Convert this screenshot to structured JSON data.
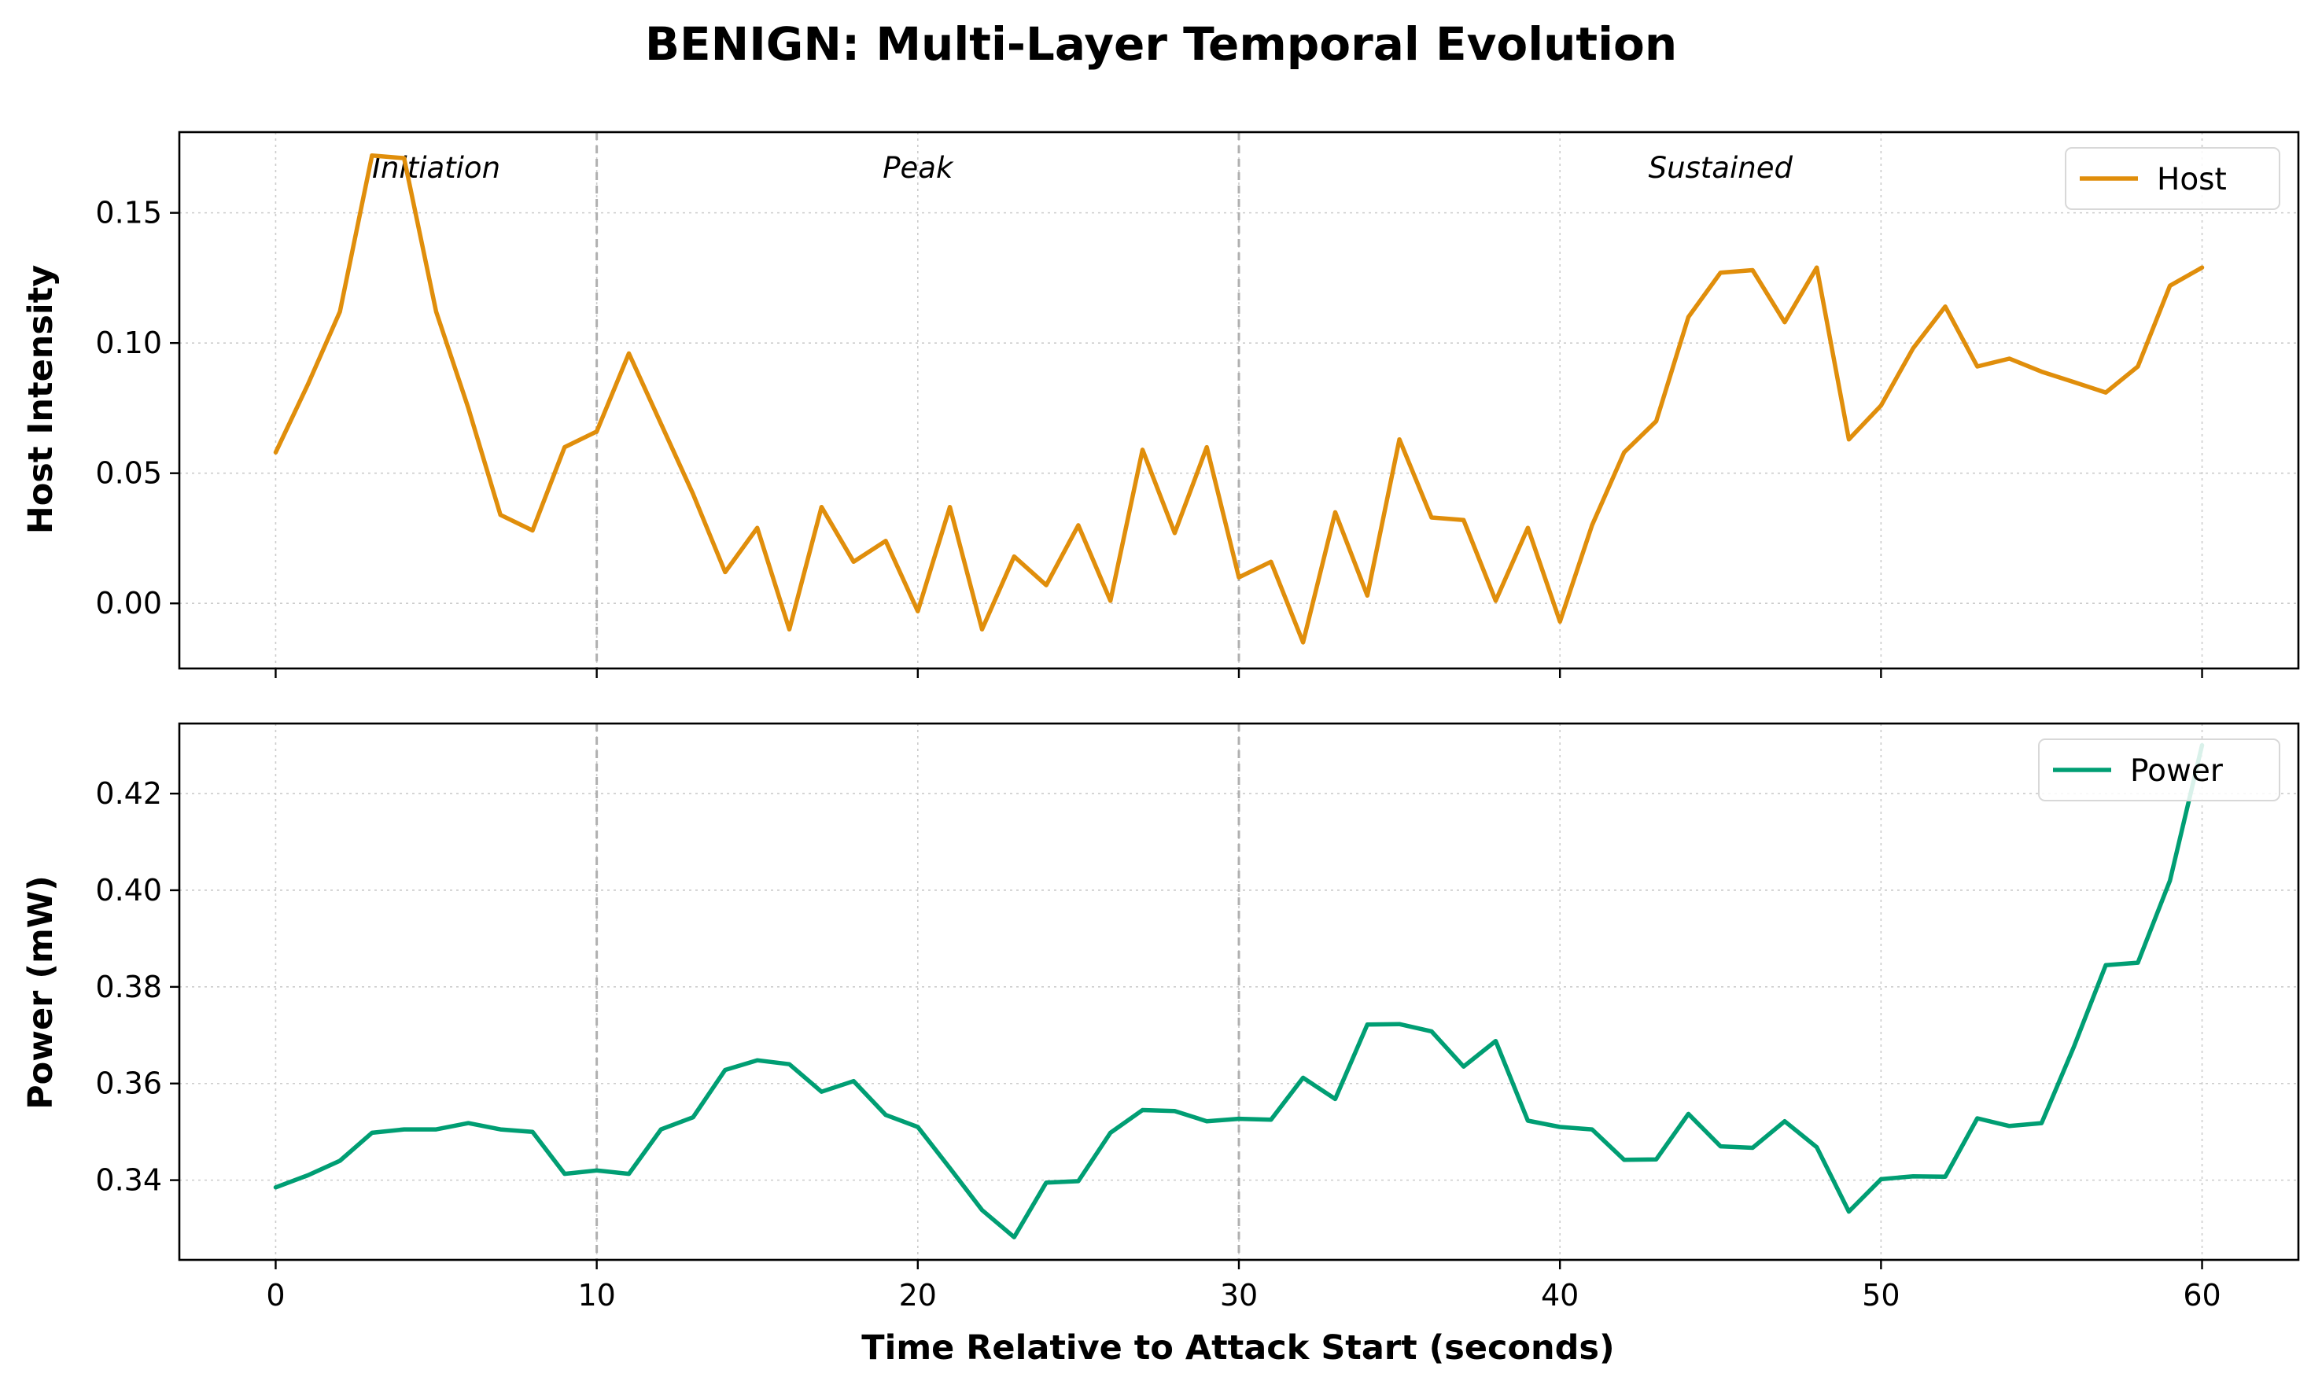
{
  "figure": {
    "title": "BENIGN: Multi-Layer Temporal Evolution",
    "xlabel": "Time Relative to Attack Start (seconds)"
  },
  "chart_data": [
    {
      "type": "line",
      "ylabel": "Host Intensity",
      "xlim": [
        -3,
        63
      ],
      "ylim": [
        -0.025,
        0.181
      ],
      "xticks": [
        0,
        10,
        20,
        30,
        40,
        50,
        60
      ],
      "yticks": [
        0.0,
        0.05,
        0.1,
        0.15
      ],
      "ytick_labels": [
        "0.00",
        "0.05",
        "0.10",
        "0.15"
      ],
      "grid": true,
      "legend_position": "top-right",
      "phase_markers": [
        10,
        30
      ],
      "phase_labels": [
        {
          "text": "Initiation",
          "x": 5
        },
        {
          "text": "Peak",
          "x": 20
        },
        {
          "text": "Sustained",
          "x": 45
        }
      ],
      "series": [
        {
          "name": "Host",
          "color": "#E08E0B",
          "x": [
            0,
            1,
            2,
            3,
            4,
            5,
            6,
            7,
            8,
            9,
            10,
            11,
            12,
            13,
            14,
            15,
            16,
            17,
            18,
            19,
            20,
            21,
            22,
            23,
            24,
            25,
            26,
            27,
            28,
            29,
            30,
            31,
            32,
            33,
            34,
            35,
            36,
            37,
            38,
            39,
            40,
            41,
            42,
            43,
            44,
            45,
            46,
            47,
            48,
            49,
            50,
            51,
            52,
            53,
            54,
            55,
            56,
            57,
            58,
            59,
            60
          ],
          "values": [
            0.058,
            0.084,
            0.112,
            0.172,
            0.171,
            0.112,
            0.075,
            0.034,
            0.028,
            0.06,
            0.066,
            0.096,
            0.069,
            0.042,
            0.012,
            0.029,
            -0.01,
            0.037,
            0.016,
            0.024,
            -0.003,
            0.037,
            -0.01,
            0.018,
            0.007,
            0.03,
            0.001,
            0.059,
            0.027,
            0.06,
            0.01,
            0.016,
            -0.015,
            0.035,
            0.003,
            0.063,
            0.033,
            0.032,
            0.001,
            0.029,
            -0.007,
            0.03,
            0.058,
            0.07,
            0.11,
            0.127,
            0.128,
            0.108,
            0.129,
            0.063,
            0.076,
            0.098,
            0.114,
            0.091,
            0.094,
            0.089,
            0.085,
            0.081,
            0.091,
            0.122,
            0.129
          ]
        }
      ]
    },
    {
      "type": "line",
      "ylabel": "Power (mW)",
      "xlim": [
        -3,
        63
      ],
      "ylim": [
        0.3235,
        0.4345
      ],
      "xticks": [
        0,
        10,
        20,
        30,
        40,
        50,
        60
      ],
      "xtick_labels": [
        "0",
        "10",
        "20",
        "30",
        "40",
        "50",
        "60"
      ],
      "yticks": [
        0.34,
        0.36,
        0.38,
        0.4,
        0.42
      ],
      "ytick_labels": [
        "0.34",
        "0.36",
        "0.38",
        "0.40",
        "0.42"
      ],
      "grid": true,
      "legend_position": "top-right",
      "phase_markers": [
        10,
        30
      ],
      "series": [
        {
          "name": "Power",
          "color": "#009E73",
          "x": [
            0,
            1,
            2,
            3,
            4,
            5,
            6,
            7,
            8,
            9,
            10,
            11,
            12,
            13,
            14,
            15,
            16,
            17,
            18,
            19,
            20,
            21,
            22,
            23,
            24,
            25,
            26,
            27,
            28,
            29,
            30,
            31,
            32,
            33,
            34,
            35,
            36,
            37,
            38,
            39,
            40,
            41,
            42,
            43,
            44,
            45,
            46,
            47,
            48,
            49,
            50,
            51,
            52,
            53,
            54,
            55,
            56,
            57,
            58,
            59,
            60
          ],
          "values": [
            0.3385,
            0.341,
            0.344,
            0.3498,
            0.3505,
            0.3505,
            0.3518,
            0.3505,
            0.35,
            0.3413,
            0.342,
            0.3413,
            0.3505,
            0.353,
            0.3628,
            0.3648,
            0.364,
            0.3583,
            0.3605,
            0.3535,
            0.351,
            0.3425,
            0.3338,
            0.3282,
            0.3395,
            0.3398,
            0.3498,
            0.3545,
            0.3543,
            0.3522,
            0.3527,
            0.3525,
            0.3612,
            0.3568,
            0.3722,
            0.3723,
            0.3708,
            0.3635,
            0.3688,
            0.3523,
            0.351,
            0.3505,
            0.3442,
            0.3443,
            0.3537,
            0.347,
            0.3467,
            0.3522,
            0.3468,
            0.3335,
            0.3402,
            0.3408,
            0.3407,
            0.3528,
            0.3512,
            0.3518,
            0.3675,
            0.3845,
            0.385,
            0.402,
            0.43
          ]
        }
      ]
    }
  ]
}
